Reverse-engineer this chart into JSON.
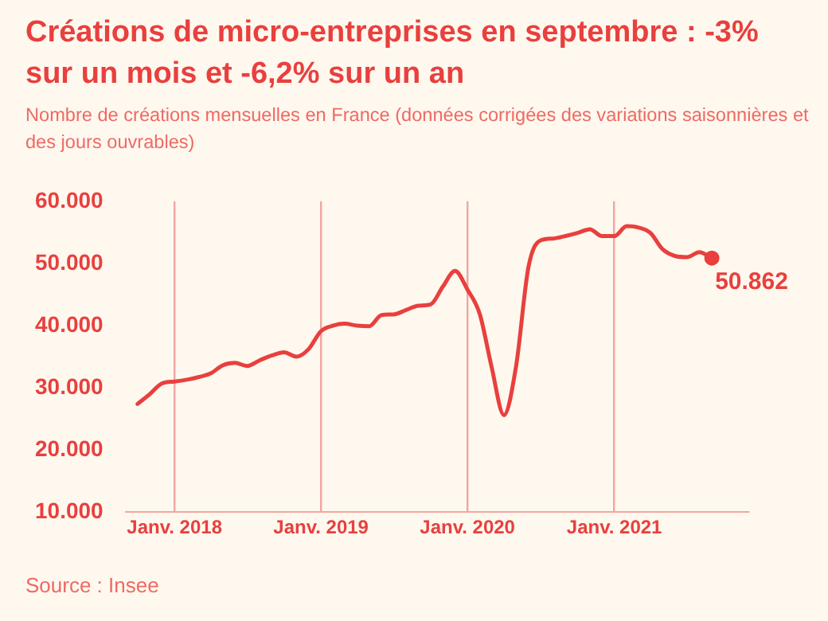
{
  "chart_data": {
    "type": "line",
    "title": "Créations de micro-entreprises en septembre : -3% sur un mois et -6,2% sur un an",
    "subtitle": "Nombre de créations mensuelles en France (données corrigées des variations saisonnières et des jours ouvrables)",
    "x": [
      "2017-10",
      "2017-11",
      "2017-12",
      "2018-01",
      "2018-02",
      "2018-03",
      "2018-04",
      "2018-05",
      "2018-06",
      "2018-07",
      "2018-08",
      "2018-09",
      "2018-10",
      "2018-11",
      "2018-12",
      "2019-01",
      "2019-02",
      "2019-03",
      "2019-04",
      "2019-05",
      "2019-06",
      "2019-07",
      "2019-08",
      "2019-09",
      "2019-10",
      "2019-11",
      "2019-12",
      "2020-01",
      "2020-02",
      "2020-03",
      "2020-04",
      "2020-05",
      "2020-06",
      "2020-07",
      "2020-08",
      "2020-09",
      "2020-10",
      "2020-11",
      "2020-12",
      "2021-01",
      "2021-02",
      "2021-03",
      "2021-04",
      "2021-05",
      "2021-06",
      "2021-07",
      "2021-08",
      "2021-09"
    ],
    "series": [
      {
        "color": "#e8403e",
        "values": [
          27400,
          29000,
          30700,
          31000,
          31300,
          31700,
          32300,
          33600,
          34000,
          33500,
          34400,
          35200,
          35700,
          35000,
          36200,
          39100,
          40000,
          40300,
          40000,
          39900,
          41700,
          41800,
          42500,
          43200,
          43400,
          46300,
          48800,
          45800,
          41800,
          33400,
          25600,
          33400,
          49400,
          53700,
          54000,
          54400,
          54900,
          55500,
          54400,
          54400,
          56000,
          55800,
          54900,
          52300,
          51200,
          51000,
          51800,
          50862
        ]
      }
    ],
    "xlim": [
      "2017-09",
      "2021-12"
    ],
    "xticks": [
      {
        "value": "2018-01",
        "label": "Janv. 2018"
      },
      {
        "value": "2019-01",
        "label": "Janv. 2019"
      },
      {
        "value": "2020-01",
        "label": "Janv. 2020"
      },
      {
        "value": "2021-01",
        "label": "Janv. 2021"
      }
    ],
    "ylim": [
      10000,
      60000
    ],
    "yticks": [
      {
        "value": 10000,
        "label": "10.000"
      },
      {
        "value": 20000,
        "label": "20.000"
      },
      {
        "value": 30000,
        "label": "30.000"
      },
      {
        "value": 40000,
        "label": "40.000"
      },
      {
        "value": 50000,
        "label": "50.000"
      },
      {
        "value": 60000,
        "label": "60.000"
      }
    ],
    "grid": "x",
    "legend": false,
    "annotations": [
      {
        "text": "50.862",
        "x": "2021-09",
        "y": 50862
      },
      "Source : Insee"
    ]
  }
}
